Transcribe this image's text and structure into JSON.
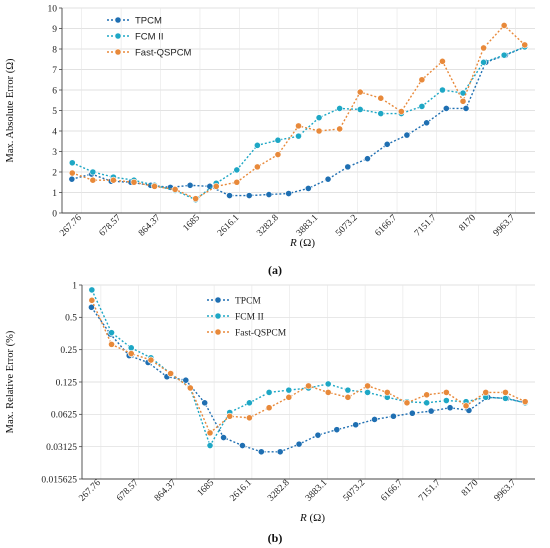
{
  "chart_data": [
    {
      "type": "line",
      "panel_caption": "(a)",
      "xlabel_var": "R",
      "xlabel_unit": " (Ω)",
      "ylabel": "Max. Absolute Error (Ω)",
      "ylim": [
        0,
        10
      ],
      "y_ticks": [
        0,
        1,
        2,
        3,
        4,
        5,
        6,
        7,
        8,
        9,
        10
      ],
      "y_tick_labels": [
        "0",
        "1",
        "2",
        "3",
        "4",
        "5",
        "6",
        "7",
        "8",
        "9",
        "10"
      ],
      "x_tick_labels": [
        "267.76",
        "678.57",
        "864.37",
        "1685",
        "2616.1",
        "3282.8",
        "3883.1",
        "5073.2",
        "6166.7",
        "7151.7",
        "8170",
        "9963.7"
      ],
      "series": [
        {
          "name": "TPCM",
          "color": "#1f6fb2",
          "values": [
            1.65,
            1.9,
            1.55,
            1.5,
            1.35,
            1.25,
            1.35,
            1.3,
            0.85,
            0.85,
            0.9,
            0.95,
            1.2,
            1.65,
            2.25,
            2.65,
            3.35,
            3.8,
            4.4,
            5.1,
            5.1,
            7.35,
            7.7,
            8.1
          ]
        },
        {
          "name": "FCM II",
          "color": "#1ea7c5",
          "values": [
            2.45,
            2.0,
            1.75,
            1.6,
            1.35,
            1.1,
            0.65,
            1.45,
            2.1,
            3.3,
            3.55,
            3.75,
            4.65,
            5.1,
            5.05,
            4.85,
            4.85,
            5.2,
            6.0,
            5.85,
            7.35,
            7.7,
            8.1
          ]
        },
        {
          "name": "Fast-QSPCM",
          "color": "#e8893a",
          "values": [
            1.95,
            1.6,
            1.6,
            1.5,
            1.3,
            1.15,
            0.7,
            1.3,
            1.5,
            2.25,
            2.85,
            4.25,
            4.0,
            4.1,
            5.9,
            5.6,
            4.95,
            6.5,
            7.4,
            5.45,
            8.05,
            9.15,
            8.2
          ]
        }
      ],
      "legend_position": "top-left"
    },
    {
      "type": "line",
      "panel_caption": "(b)",
      "xlabel_var": "R",
      "xlabel_unit": " (Ω)",
      "ylabel": "Max. Relative Error (%)",
      "y_scale": "log2",
      "ylim": [
        0.015625,
        1
      ],
      "y_ticks": [
        1,
        0.5,
        0.25,
        0.125,
        0.0625,
        0.03125,
        0.015625
      ],
      "y_tick_labels": [
        "1",
        "0.5",
        "0.25",
        "0.125",
        "0.0625",
        "0.03125",
        "0.015625"
      ],
      "x_tick_labels": [
        "267.76",
        "678.57",
        "864.37",
        "1685",
        "2616.1",
        "3282.8",
        "3883.1",
        "5073.2",
        "6166.7",
        "7151.7",
        "8170",
        "9963.7"
      ],
      "series": [
        {
          "name": "TPCM",
          "color": "#1f6fb2",
          "values": [
            0.62,
            0.35,
            0.22,
            0.19,
            0.14,
            0.13,
            0.08,
            0.038,
            0.032,
            0.028,
            0.028,
            0.033,
            0.04,
            0.045,
            0.05,
            0.056,
            0.06,
            0.064,
            0.067,
            0.072,
            0.068,
            0.09,
            0.088,
            0.08
          ]
        },
        {
          "name": "FCM II",
          "color": "#1ea7c5",
          "values": [
            0.9,
            0.36,
            0.26,
            0.21,
            0.15,
            0.11,
            0.032,
            0.065,
            0.08,
            0.1,
            0.105,
            0.11,
            0.12,
            0.105,
            0.1,
            0.09,
            0.082,
            0.08,
            0.084,
            0.082,
            0.09,
            0.088,
            0.08
          ]
        },
        {
          "name": "Fast-QSPCM",
          "color": "#e8893a",
          "values": [
            0.72,
            0.28,
            0.23,
            0.2,
            0.15,
            0.11,
            0.042,
            0.06,
            0.058,
            0.072,
            0.09,
            0.115,
            0.1,
            0.09,
            0.115,
            0.1,
            0.08,
            0.095,
            0.1,
            0.075,
            0.1,
            0.1,
            0.082
          ]
        }
      ],
      "legend_position": "top-right"
    }
  ]
}
